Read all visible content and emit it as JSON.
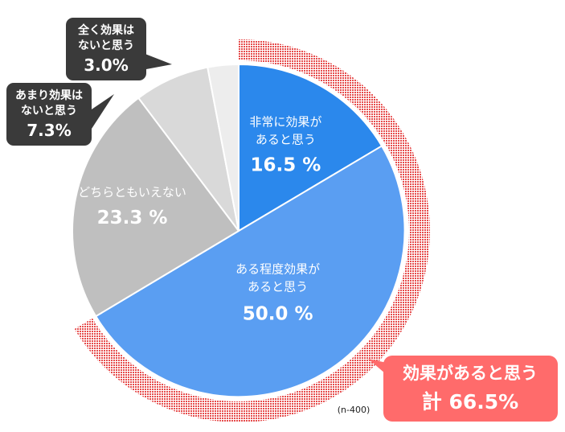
{
  "chart_data": {
    "type": "pie",
    "categories": [
      "非常に効果があると思う",
      "ある程度効果があると思う",
      "どちらともいえない",
      "あまり効果はないと思う",
      "全く効果はないと思う"
    ],
    "values": [
      16.5,
      50.0,
      23.3,
      7.3,
      3.0
    ],
    "unit": "%",
    "start_angle": "12 o'clock",
    "direction": "clockwise",
    "slices": [
      {
        "label_lines": [
          "非常に効果が",
          "あると思う"
        ],
        "value_text": "16.5 %",
        "color": "#2b88ec",
        "label_position": "inside"
      },
      {
        "label_lines": [
          "ある程度効果が",
          "あると思う"
        ],
        "value_text": "50.0 %",
        "color": "#5a9ef2",
        "label_position": "inside"
      },
      {
        "label_lines": [
          "どちらともいえない"
        ],
        "value_text": "23.3 %",
        "color": "#bfbfbf",
        "label_position": "inside"
      },
      {
        "label_lines": [
          "あまり効果は",
          "ないと思う"
        ],
        "value_text": "7.3%",
        "color": "#d9d9d9",
        "label_position": "callout"
      },
      {
        "label_lines": [
          "全く効果は",
          "ないと思う"
        ],
        "value_text": "3.0%",
        "color": "#ededed",
        "label_position": "callout"
      }
    ],
    "highlight": {
      "title": "効果があると思う",
      "value_text": "計 66.5%",
      "value": 66.5,
      "color": "#ff6b6b",
      "spans_slices": [
        0,
        1
      ]
    },
    "sample_note": "(n-400)"
  }
}
